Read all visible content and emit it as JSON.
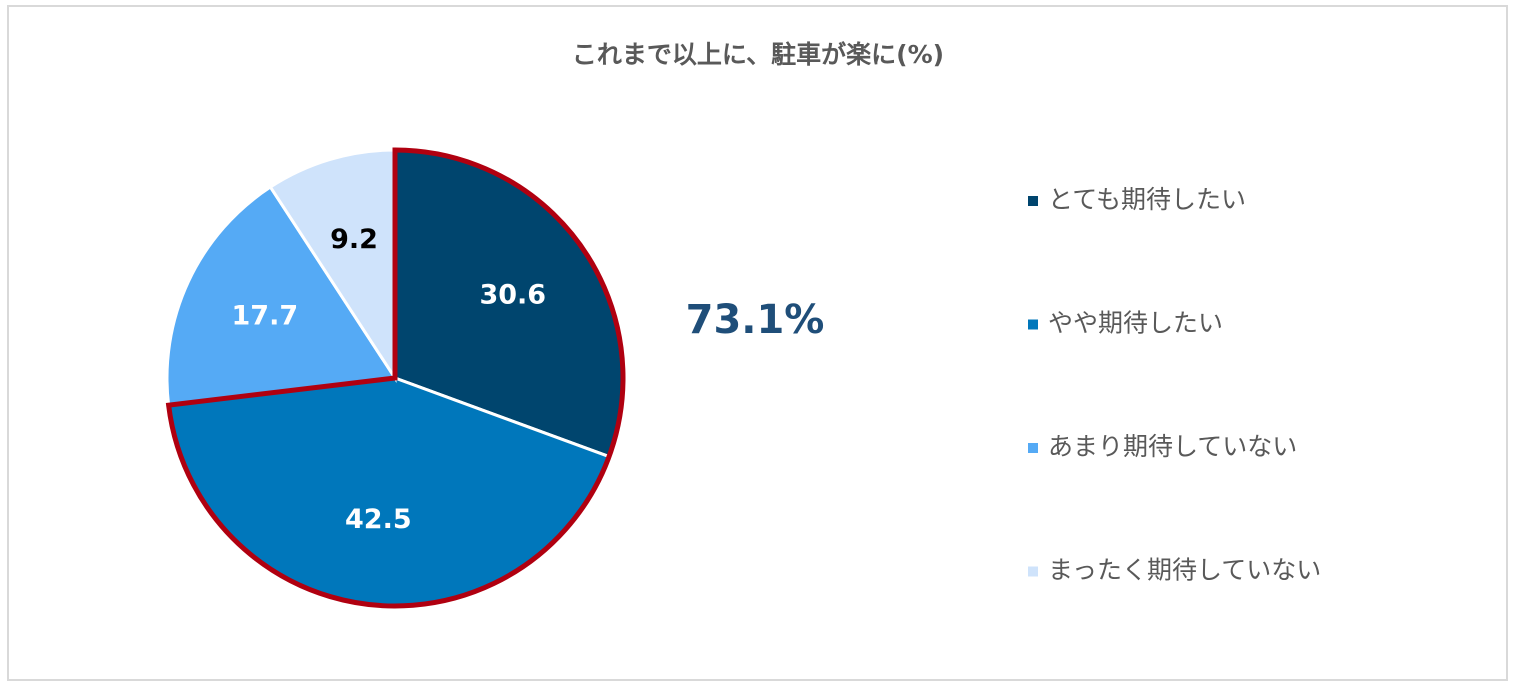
{
  "chart_data": {
    "type": "pie",
    "title": "これまで以上に、駐車が楽に(%)",
    "categories": [
      "とても期待したい",
      "やや期待したい",
      "あまり期待していない",
      "まったく期待していない"
    ],
    "values": [
      30.6,
      42.5,
      17.7,
      9.2
    ],
    "colors": [
      "#00456e",
      "#0077bb",
      "#55aaf5",
      "#cfe3fb"
    ],
    "annotation": "73.1%",
    "legend": "right"
  }
}
